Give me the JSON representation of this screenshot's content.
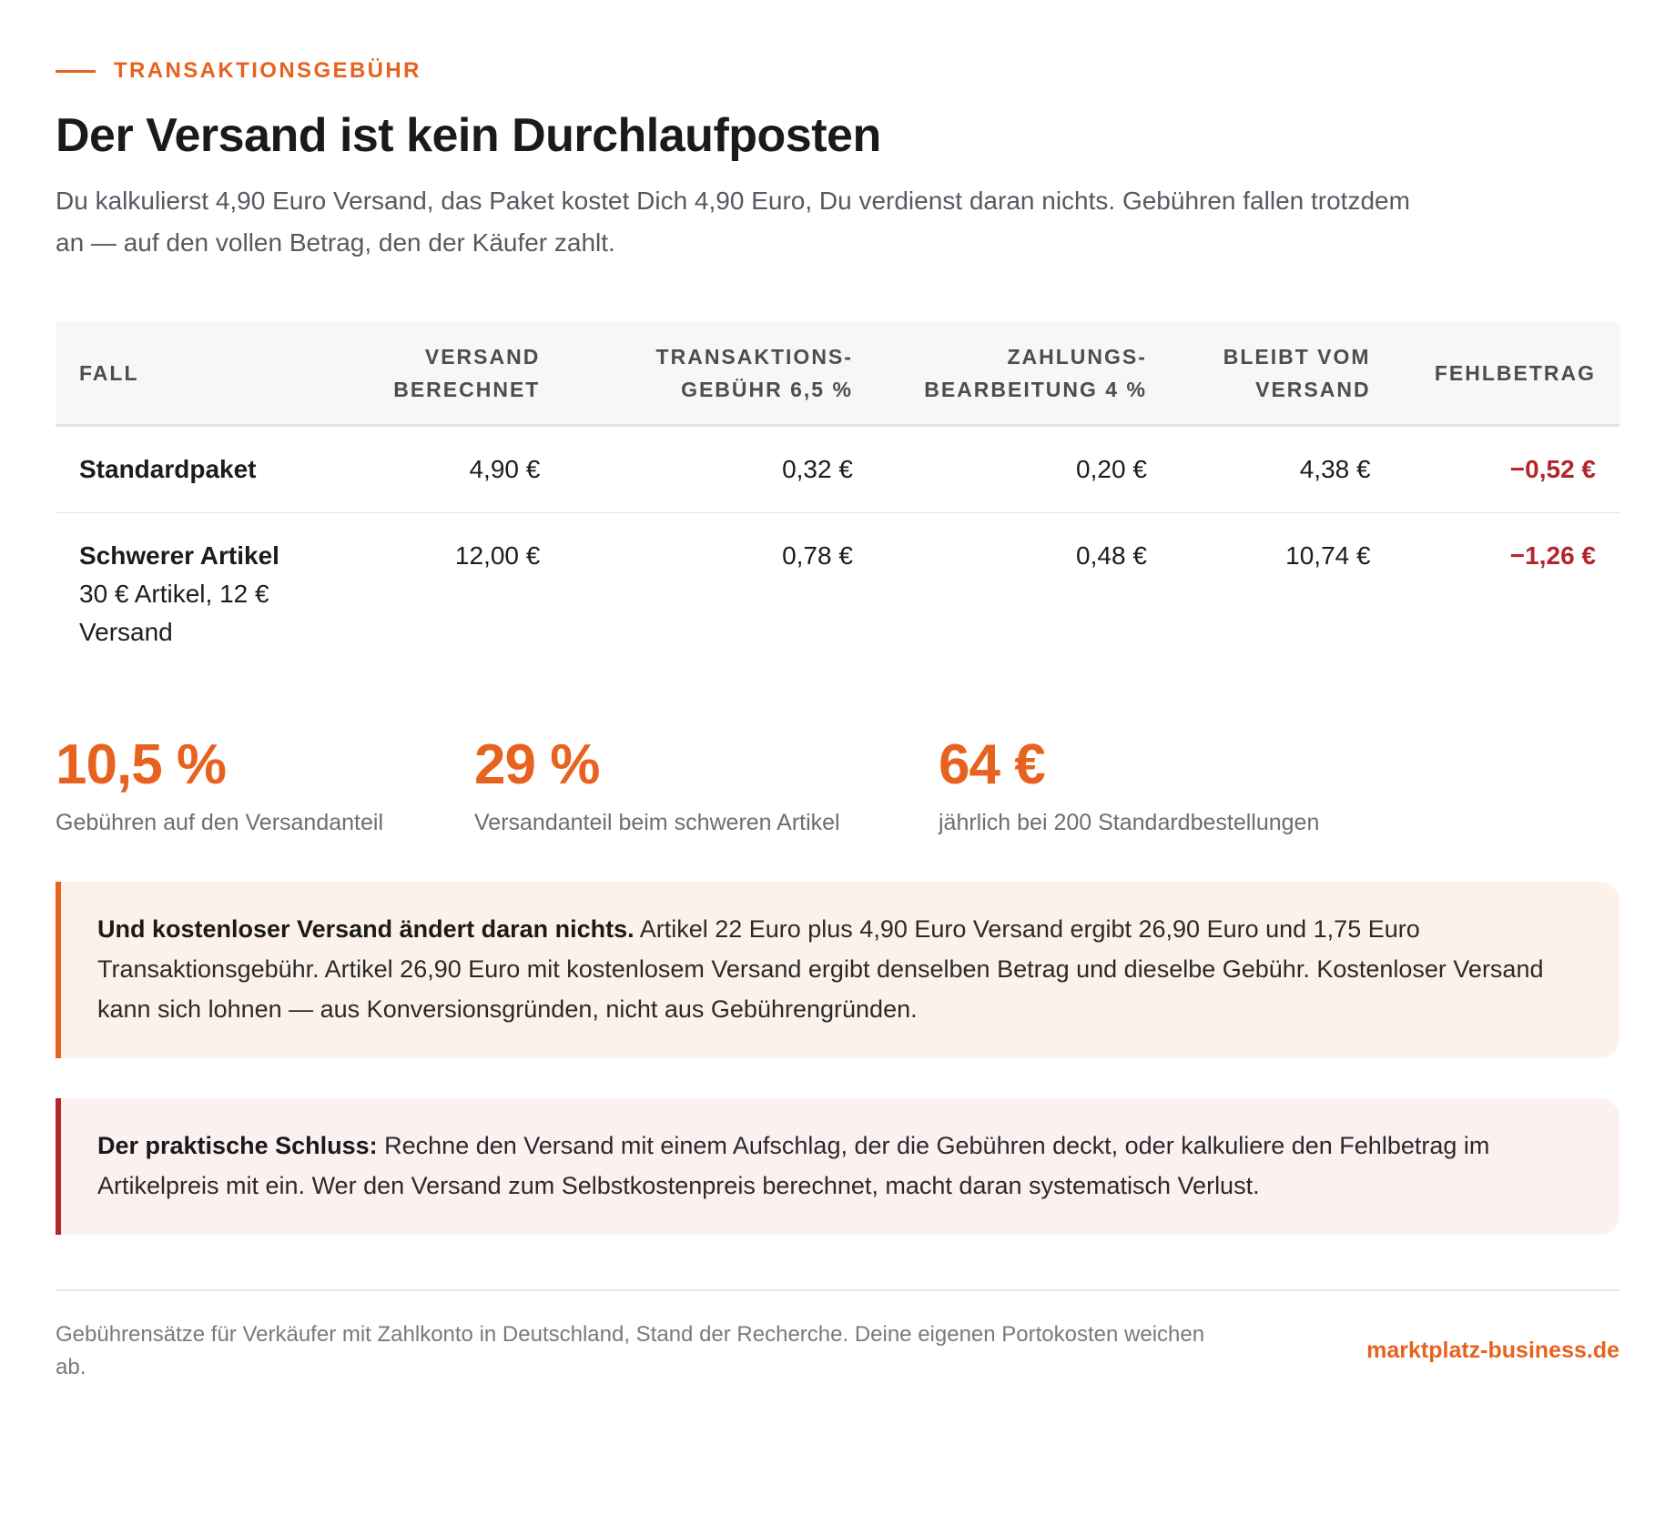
{
  "eyebrow": "Transaktionsgebühr",
  "title": "Der Versand ist kein Durchlaufposten",
  "lede": "Du kalkulierst 4,90 Euro Versand, das Paket kostet Dich 4,90 Euro, Du verdienst daran nichts. Gebühren fallen trotzdem an — auf den vollen Betrag, den der Käufer zahlt.",
  "table": {
    "headers": {
      "case": "Fall",
      "shipping_line1": "Versand",
      "shipping_line2": "berechnet",
      "transaction_line1": "Transaktions-",
      "transaction_line2": "gebühr 6,5 %",
      "payment_line1": "Zahlungs-",
      "payment_line2": "bearbeitung 4 %",
      "remaining_line1": "Bleibt vom",
      "remaining_line2": "Versand",
      "shortfall": "Fehlbetrag"
    },
    "rows": [
      {
        "case": "Standardpaket",
        "subtitle": "",
        "shipping": "4,90 €",
        "transaction_fee": "0,32 €",
        "payment_fee": "0,20 €",
        "remaining": "4,38 €",
        "shortfall": "−0,52 €"
      },
      {
        "case": "Schwerer Artikel",
        "subtitle": "30 € Artikel, 12 € Versand",
        "shipping": "12,00 €",
        "transaction_fee": "0,78 €",
        "payment_fee": "0,48 €",
        "remaining": "10,74 €",
        "shortfall": "−1,26 €"
      }
    ]
  },
  "stats": [
    {
      "value": "10,5 %",
      "label": "Gebühren auf den Versandanteil"
    },
    {
      "value": "29 %",
      "label": "Versandanteil beim schweren Artikel"
    },
    {
      "value": "64 €",
      "label": "jährlich bei 200 Standardbestellungen"
    }
  ],
  "callouts": {
    "free_shipping": {
      "lead": "Und kostenloser Versand ändert daran nichts.",
      "text": "Artikel 22 Euro plus 4,90 Euro Versand ergibt 26,90 Euro und 1,75 Euro Transaktionsgebühr. Artikel 26,90 Euro mit kostenlosem Versand ergibt denselben Betrag und dieselbe Gebühr. Kostenloser Versand kann sich lohnen — aus Konversionsgründen, nicht aus Gebührengründen."
    },
    "conclusion": {
      "lead": "Der praktische Schluss:",
      "text": "Rechne den Versand mit einem Aufschlag, der die Gebühren deckt, oder kalkuliere den Fehlbetrag im Artikelpreis mit ein. Wer den Versand zum Selbstkostenpreis berechnet, macht daran systematisch Verlust."
    }
  },
  "footer": {
    "note": "Gebührensätze für Verkäufer mit Zahlkonto in Deutschland, Stand der Recherche. Deine eigenen Portokosten weichen ab.",
    "brand": "marktplatz-business.de"
  },
  "colors": {
    "accent": "#e8621f",
    "negative": "#b3262d",
    "callout_orange_bg": "#fdf2ea",
    "callout_red_bg": "#fcf0f1"
  }
}
